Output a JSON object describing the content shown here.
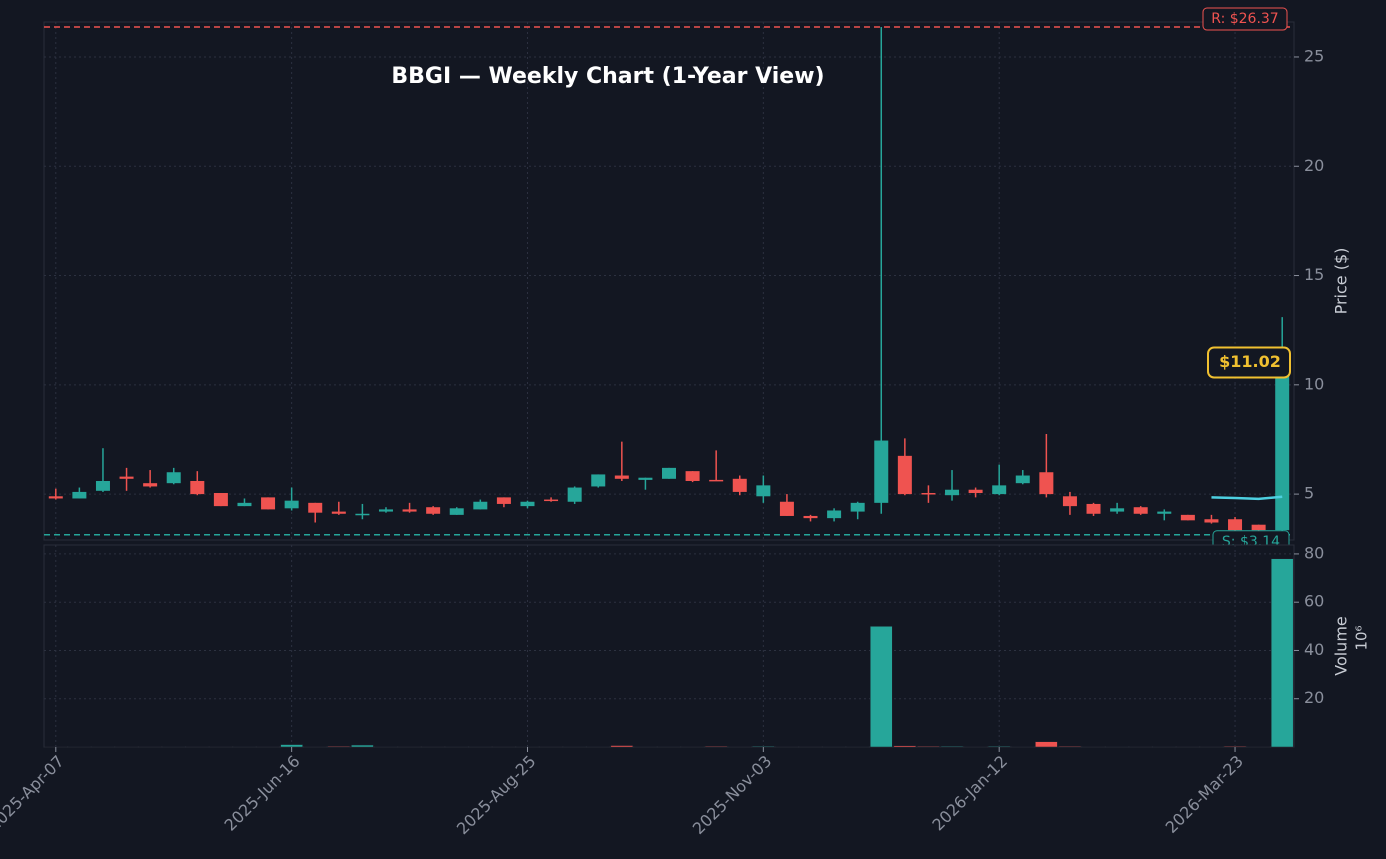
{
  "chart_data": [
    {
      "type": "candlestick",
      "title": "BBGI — Weekly Chart (1-Year View)",
      "ylabel": "Price ($)",
      "x": [
        "2025-Apr-07",
        "2025-Apr-14",
        "2025-Apr-21",
        "2025-Apr-28",
        "2025-May-05",
        "2025-May-12",
        "2025-May-19",
        "2025-May-26",
        "2025-Jun-02",
        "2025-Jun-09",
        "2025-Jun-16",
        "2025-Jun-23",
        "2025-Jun-30",
        "2025-Jul-07",
        "2025-Jul-14",
        "2025-Jul-21",
        "2025-Jul-28",
        "2025-Aug-04",
        "2025-Aug-11",
        "2025-Aug-18",
        "2025-Aug-25",
        "2025-Sep-01",
        "2025-Sep-08",
        "2025-Sep-15",
        "2025-Sep-22",
        "2025-Sep-29",
        "2025-Oct-06",
        "2025-Oct-13",
        "2025-Oct-20",
        "2025-Oct-27",
        "2025-Nov-03",
        "2025-Nov-10",
        "2025-Nov-17",
        "2025-Nov-24",
        "2025-Dec-01",
        "2025-Dec-08",
        "2025-Dec-15",
        "2025-Dec-22",
        "2025-Dec-29",
        "2026-Jan-05",
        "2026-Jan-12",
        "2026-Jan-19",
        "2026-Jan-26",
        "2026-Feb-02",
        "2026-Feb-09",
        "2026-Feb-16",
        "2026-Feb-23",
        "2026-Mar-02",
        "2026-Mar-09",
        "2026-Mar-16",
        "2026-Mar-23",
        "2026-Mar-30",
        "2026-Apr-06"
      ],
      "open": [
        4.9,
        4.8,
        5.15,
        5.8,
        5.5,
        5.5,
        5.6,
        5.05,
        4.45,
        4.85,
        4.35,
        4.6,
        4.2,
        4.05,
        4.2,
        4.3,
        4.4,
        4.05,
        4.3,
        4.85,
        4.45,
        4.75,
        4.65,
        5.35,
        5.85,
        5.65,
        5.7,
        6.05,
        5.65,
        5.7,
        4.9,
        4.65,
        4.0,
        3.9,
        4.2,
        4.6,
        6.75,
        5.05,
        4.95,
        5.2,
        5.0,
        5.5,
        6.0,
        4.9,
        4.55,
        4.2,
        4.4,
        4.1,
        4.05,
        3.85,
        3.85,
        3.6,
        3.35
      ],
      "high": [
        5.25,
        5.3,
        7.1,
        6.2,
        6.1,
        6.2,
        6.05,
        5.05,
        4.8,
        4.85,
        5.3,
        4.6,
        4.65,
        4.55,
        4.4,
        4.6,
        4.45,
        4.4,
        4.75,
        4.85,
        4.7,
        4.85,
        5.35,
        5.9,
        7.4,
        5.75,
        6.2,
        6.05,
        7.0,
        5.85,
        5.85,
        5.0,
        4.05,
        4.35,
        4.65,
        26.37,
        7.55,
        5.4,
        6.1,
        5.3,
        6.35,
        6.1,
        7.75,
        5.1,
        4.6,
        4.6,
        4.45,
        4.3,
        4.05,
        4.05,
        3.95,
        3.6,
        13.1
      ],
      "low": [
        4.75,
        4.8,
        5.1,
        5.15,
        5.3,
        5.45,
        4.95,
        4.45,
        4.45,
        4.3,
        4.25,
        3.7,
        4.05,
        3.85,
        4.15,
        4.15,
        4.05,
        4.05,
        4.3,
        4.4,
        4.35,
        4.65,
        4.55,
        5.3,
        5.6,
        5.2,
        5.7,
        5.55,
        5.6,
        4.95,
        4.6,
        4.0,
        3.75,
        3.75,
        3.85,
        4.1,
        4.95,
        4.6,
        4.7,
        4.85,
        4.95,
        5.45,
        4.85,
        4.05,
        4.0,
        4.1,
        4.05,
        3.8,
        3.8,
        3.65,
        3.3,
        3.3,
        3.3
      ],
      "close": [
        4.8,
        5.1,
        5.6,
        5.7,
        5.35,
        6.0,
        5.0,
        4.45,
        4.6,
        4.3,
        4.7,
        4.15,
        4.1,
        4.1,
        4.3,
        4.2,
        4.1,
        4.35,
        4.65,
        4.55,
        4.65,
        4.7,
        5.3,
        5.9,
        5.7,
        5.75,
        6.2,
        5.6,
        5.6,
        5.1,
        5.4,
        4.0,
        3.9,
        4.25,
        4.6,
        7.45,
        5.0,
        5.0,
        5.2,
        5.05,
        5.4,
        5.85,
        5.0,
        4.45,
        4.1,
        4.35,
        4.1,
        4.2,
        3.8,
        3.7,
        3.35,
        3.35,
        11.02
      ],
      "up_color": "#26a69a",
      "down_color": "#ef5350",
      "series": [
        {
          "color": "#4dd0e1",
          "values": [
            null,
            null,
            null,
            null,
            null,
            null,
            null,
            null,
            null,
            null,
            null,
            null,
            null,
            null,
            null,
            null,
            null,
            null,
            null,
            null,
            null,
            null,
            null,
            null,
            null,
            null,
            null,
            null,
            null,
            null,
            null,
            null,
            null,
            null,
            null,
            null,
            null,
            null,
            null,
            null,
            null,
            null,
            null,
            null,
            null,
            null,
            null,
            null,
            null,
            4.85,
            4.82,
            4.78,
            4.88
          ]
        }
      ],
      "xlim": [
        -0.5,
        52.5
      ],
      "ylim": [
        2.9,
        26.6
      ],
      "yticks": [
        5,
        10,
        15,
        20,
        25
      ],
      "xticks": [
        "2025-Apr-07",
        "2025-Jun-16",
        "2025-Aug-25",
        "2025-Nov-03",
        "2026-Jan-12",
        "2026-Mar-23"
      ],
      "grid": true,
      "resistance": {
        "value": 26.37,
        "label": "R: $26.37"
      },
      "support": {
        "value": 3.14,
        "label": "S: $3.14"
      },
      "last_price": {
        "value": 11.02,
        "label": "$11.02"
      }
    },
    {
      "type": "bar",
      "ylabel": "Volume",
      "scale_label": "10⁶",
      "x": [
        "2025-Apr-07",
        "2025-Apr-14",
        "2025-Apr-21",
        "2025-Apr-28",
        "2025-May-05",
        "2025-May-12",
        "2025-May-19",
        "2025-May-26",
        "2025-Jun-02",
        "2025-Jun-09",
        "2025-Jun-16",
        "2025-Jun-23",
        "2025-Jun-30",
        "2025-Jul-07",
        "2025-Jul-14",
        "2025-Jul-21",
        "2025-Jul-28",
        "2025-Aug-04",
        "2025-Aug-11",
        "2025-Aug-18",
        "2025-Aug-25",
        "2025-Sep-01",
        "2025-Sep-08",
        "2025-Sep-15",
        "2025-Sep-22",
        "2025-Sep-29",
        "2025-Oct-06",
        "2025-Oct-13",
        "2025-Oct-20",
        "2025-Oct-27",
        "2025-Nov-03",
        "2025-Nov-10",
        "2025-Nov-17",
        "2025-Nov-24",
        "2025-Dec-01",
        "2025-Dec-08",
        "2025-Dec-15",
        "2025-Dec-22",
        "2025-Dec-29",
        "2026-Jan-05",
        "2026-Jan-12",
        "2026-Jan-19",
        "2026-Jan-26",
        "2026-Feb-02",
        "2026-Feb-09",
        "2026-Feb-16",
        "2026-Feb-23",
        "2026-Mar-02",
        "2026-Mar-09",
        "2026-Mar-16",
        "2026-Mar-23",
        "2026-Mar-30",
        "2026-Apr-06"
      ],
      "values": [
        0.1,
        0.1,
        0.1,
        0.1,
        0.1,
        0.1,
        0.1,
        0.1,
        0.1,
        0.1,
        1.0,
        0.1,
        0.3,
        0.8,
        0.1,
        0.1,
        0.1,
        0.1,
        0.1,
        0.1,
        0.1,
        0.1,
        0.1,
        0.1,
        0.6,
        0.1,
        0.1,
        0.1,
        0.3,
        0.1,
        0.3,
        0.1,
        0.1,
        0.1,
        0.1,
        50,
        0.5,
        0.3,
        0.3,
        0.1,
        0.3,
        0.1,
        2.2,
        0.3,
        0.1,
        0.1,
        0.1,
        0.1,
        0.1,
        0.1,
        0.3,
        0.1,
        78
      ],
      "xlim": [
        -0.5,
        52.5
      ],
      "ylim": [
        0,
        83.7
      ],
      "yticks": [
        20,
        40,
        60,
        80
      ],
      "xticks": [
        "2025-Apr-07",
        "2025-Jun-16",
        "2025-Aug-25",
        "2025-Nov-03",
        "2026-Jan-12",
        "2026-Mar-23"
      ],
      "grid": true
    }
  ]
}
